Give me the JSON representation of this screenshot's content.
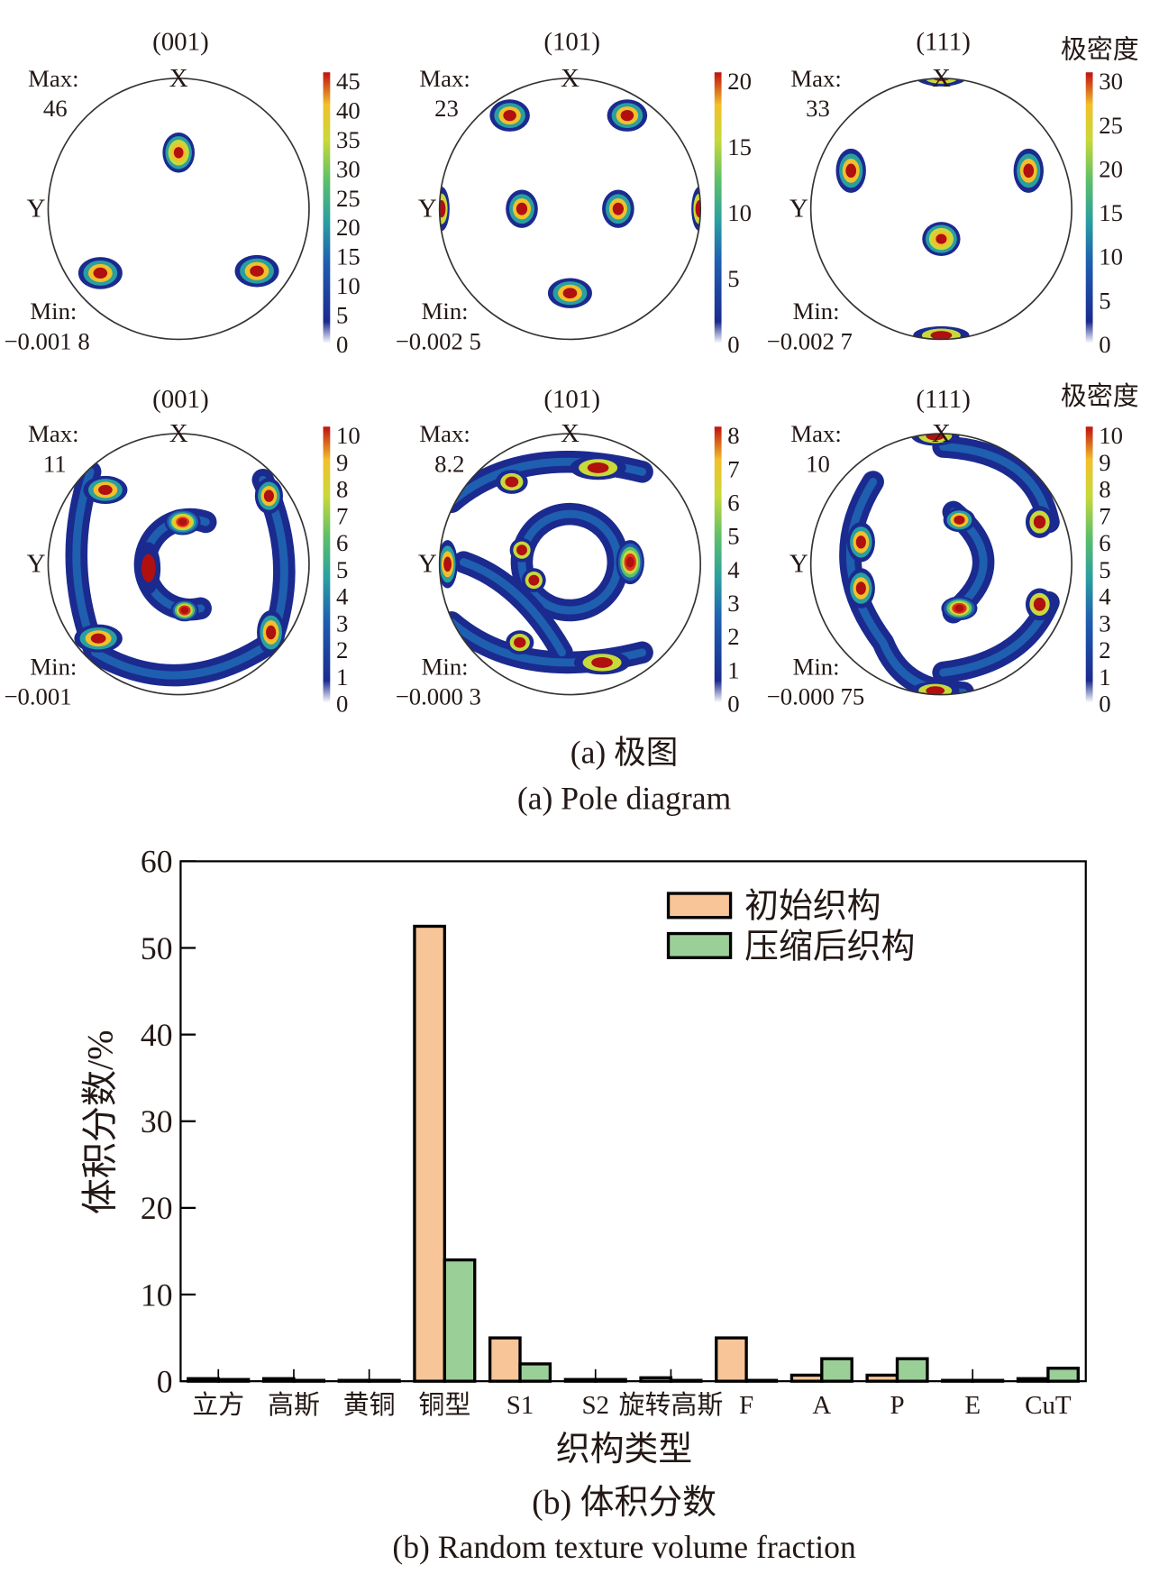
{
  "pole_figure": {
    "colorbar_title": "极密度",
    "axis_x": "X",
    "axis_y": "Y",
    "max_label": "Max:",
    "min_label": "Min:",
    "rows": [
      {
        "panels": [
          {
            "title": "(001)",
            "max": "46",
            "min": "−0.001 8",
            "ticks": [
              "45",
              "40",
              "35",
              "30",
              "25",
              "20",
              "15",
              "10",
              "5",
              "0"
            ]
          },
          {
            "title": "(101)",
            "max": "23",
            "min": "−0.002 5",
            "ticks": [
              "20",
              "15",
              "10",
              "5",
              "0"
            ]
          },
          {
            "title": "(111)",
            "max": "33",
            "min": "−0.002 7",
            "ticks": [
              "30",
              "25",
              "20",
              "15",
              "10",
              "5",
              "0"
            ]
          }
        ]
      },
      {
        "panels": [
          {
            "title": "(001)",
            "max": "11",
            "min": "−0.001",
            "ticks": [
              "10",
              "9",
              "8",
              "7",
              "6",
              "5",
              "4",
              "3",
              "2",
              "1",
              "0"
            ]
          },
          {
            "title": "(101)",
            "max": "8.2",
            "min": "−0.000 3",
            "ticks": [
              "8",
              "7",
              "6",
              "5",
              "4",
              "3",
              "2",
              "1",
              "0"
            ]
          },
          {
            "title": "(111)",
            "max": "10",
            "min": "−0.000 75",
            "ticks": [
              "10",
              "9",
              "8",
              "7",
              "6",
              "5",
              "4",
              "3",
              "2",
              "1",
              "0"
            ]
          }
        ]
      }
    ],
    "caption_cn": "(a) 极图",
    "caption_en": "(a) Pole diagram",
    "colormap": [
      "#ffffff",
      "#1b2a8f",
      "#1f5fb0",
      "#2a9fa0",
      "#5cbf6a",
      "#c8d93a",
      "#f2c02a",
      "#e0301e",
      "#b01010"
    ]
  },
  "chart_data": {
    "type": "bar",
    "title": "",
    "xlabel": "织构类型",
    "ylabel": "体积分数/%",
    "ylim": [
      0,
      60
    ],
    "yticks": [
      "0",
      "10",
      "20",
      "30",
      "40",
      "50",
      "60"
    ],
    "categories": [
      "立方",
      "高斯",
      "黄铜",
      "铜型",
      "S1",
      "S2",
      "旋转高斯",
      "F",
      "A",
      "P",
      "E",
      "CuT"
    ],
    "series": [
      {
        "name": "初始织构",
        "color": "#f7c598",
        "values": [
          0.3,
          0.3,
          0.1,
          52.5,
          5.0,
          0.2,
          0.4,
          5.0,
          0.7,
          0.7,
          0.1,
          0.3
        ]
      },
      {
        "name": "压缩后织构",
        "color": "#9bcf98",
        "values": [
          0.2,
          0.1,
          0.1,
          14.0,
          2.0,
          0.2,
          0.1,
          0.1,
          2.6,
          2.6,
          0.1,
          1.5
        ]
      }
    ],
    "legend_position": "top-right",
    "grid": false,
    "caption_cn": "(b) 体积分数",
    "caption_en": "(b) Random texture volume fraction"
  }
}
